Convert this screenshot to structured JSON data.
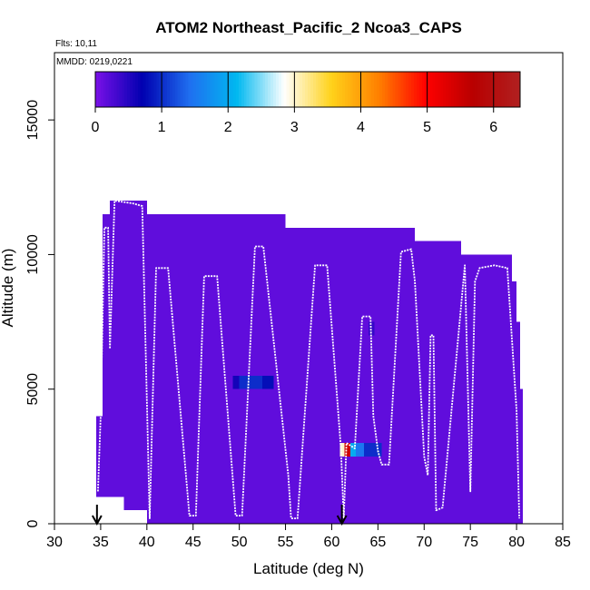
{
  "chart_data": {
    "type": "heatmap",
    "title": "ATOM2 Northeast_Pacific_2 Ncoa3_CAPS",
    "annotations": {
      "flights": "Flts: 10,11",
      "dates": "MMDD: 0219,0221"
    },
    "xlabel": "Latitude (deg N)",
    "ylabel": "Altitude (m)",
    "xlim": [
      30,
      85
    ],
    "ylim": [
      0,
      17500
    ],
    "xticks": [
      30,
      35,
      40,
      45,
      50,
      55,
      60,
      65,
      70,
      75,
      80,
      85
    ],
    "yticks": [
      0,
      5000,
      10000,
      15000
    ],
    "grid": false,
    "colorbar": {
      "range": [
        0,
        6.4
      ],
      "ticks": [
        0,
        1,
        2,
        3,
        4,
        5,
        6
      ],
      "placement": "top-inside",
      "colors": [
        "#7a10e8",
        "#0000b0",
        "#1f6ff0",
        "#00b8f0",
        "#ffffff",
        "#ffd21a",
        "#ff8000",
        "#ff0000",
        "#b80000",
        "#b02020"
      ]
    },
    "background_cells": [
      {
        "x": [
          34.5,
          35.2
        ],
        "y": [
          1000,
          4000
        ],
        "value": 0.15
      },
      {
        "x": [
          35.2,
          36.0
        ],
        "y": [
          1000,
          11500
        ],
        "value": 0.15
      },
      {
        "x": [
          36.0,
          37.5
        ],
        "y": [
          1000,
          12000
        ],
        "value": 0.15
      },
      {
        "x": [
          37.5,
          40.0
        ],
        "y": [
          500,
          12000
        ],
        "value": 0.15
      },
      {
        "x": [
          40.0,
          55.0
        ],
        "y": [
          0,
          11500
        ],
        "value": 0.15
      },
      {
        "x": [
          55.0,
          69.0
        ],
        "y": [
          0,
          11000
        ],
        "value": 0.15
      },
      {
        "x": [
          69.0,
          74.0
        ],
        "y": [
          0,
          10500
        ],
        "value": 0.15
      },
      {
        "x": [
          74.0,
          79.5
        ],
        "y": [
          0,
          10000
        ],
        "value": 0.15
      },
      {
        "x": [
          79.5,
          80.0
        ],
        "y": [
          0,
          9000
        ],
        "value": 0.15
      },
      {
        "x": [
          80.0,
          80.4
        ],
        "y": [
          0,
          7500
        ],
        "value": 0.15
      },
      {
        "x": [
          80.4,
          80.7
        ],
        "y": [
          0,
          5000
        ],
        "value": 0.15
      }
    ],
    "highlight_cells": [
      {
        "x": [
          49.3,
          50.0
        ],
        "y": [
          5000,
          5500
        ],
        "value": 0.6
      },
      {
        "x": [
          50.0,
          52.5
        ],
        "y": [
          5000,
          5500
        ],
        "value": 1.0
      },
      {
        "x": [
          52.5,
          53.7
        ],
        "y": [
          5000,
          5500
        ],
        "value": 0.8
      },
      {
        "x": [
          60.9,
          61.4
        ],
        "y": [
          2500,
          3000
        ],
        "value": 3.0
      },
      {
        "x": [
          61.4,
          62.0
        ],
        "y": [
          2500,
          3000
        ],
        "value": 5.5
      },
      {
        "x": [
          62.0,
          62.6
        ],
        "y": [
          2500,
          3000
        ],
        "value": 2.0
      },
      {
        "x": [
          62.6,
          63.5
        ],
        "y": [
          2500,
          3000
        ],
        "value": 1.5
      },
      {
        "x": [
          63.5,
          65.4
        ],
        "y": [
          2500,
          3000
        ],
        "value": 1.0
      },
      {
        "x": [
          64.0,
          64.6
        ],
        "y": [
          7000,
          7500
        ],
        "value": 0.4
      }
    ],
    "flight_track": [
      [
        34.7,
        1200
      ],
      [
        35.0,
        4000
      ],
      [
        35.4,
        11000
      ],
      [
        35.8,
        11000
      ],
      [
        36.0,
        6500
      ],
      [
        36.5,
        12000
      ],
      [
        38.5,
        11900
      ],
      [
        39.5,
        11800
      ],
      [
        40.3,
        200
      ],
      [
        41.0,
        9500
      ],
      [
        42.3,
        9500
      ],
      [
        44.6,
        300
      ],
      [
        45.3,
        300
      ],
      [
        46.2,
        9200
      ],
      [
        47.6,
        9200
      ],
      [
        49.6,
        300
      ],
      [
        50.3,
        300
      ],
      [
        51.7,
        10300
      ],
      [
        52.6,
        10300
      ],
      [
        55.3,
        1800
      ],
      [
        55.6,
        200
      ],
      [
        56.3,
        200
      ],
      [
        58.2,
        9600
      ],
      [
        59.5,
        9600
      ],
      [
        61.0,
        2800
      ],
      [
        61.3,
        200
      ],
      [
        61.6,
        3000
      ],
      [
        62.5,
        2800
      ],
      [
        63.3,
        7700
      ],
      [
        64.2,
        7700
      ],
      [
        64.5,
        4000
      ],
      [
        65.0,
        2700
      ],
      [
        65.4,
        2200
      ],
      [
        66.2,
        2200
      ],
      [
        67.5,
        10100
      ],
      [
        68.6,
        10200
      ],
      [
        69.0,
        9000
      ],
      [
        70.0,
        2500
      ],
      [
        70.4,
        1800
      ],
      [
        70.7,
        7000
      ],
      [
        71.0,
        7000
      ],
      [
        71.3,
        500
      ],
      [
        72.0,
        600
      ],
      [
        74.4,
        9600
      ],
      [
        75.0,
        1200
      ],
      [
        75.5,
        9000
      ],
      [
        76.0,
        9500
      ],
      [
        77.6,
        9600
      ],
      [
        79.0,
        9500
      ],
      [
        80.0,
        4200
      ],
      [
        80.3,
        200
      ]
    ],
    "markers": [
      {
        "x": 34.6,
        "label": "arrow"
      },
      {
        "x": 61.1,
        "label": "arrow"
      }
    ]
  }
}
